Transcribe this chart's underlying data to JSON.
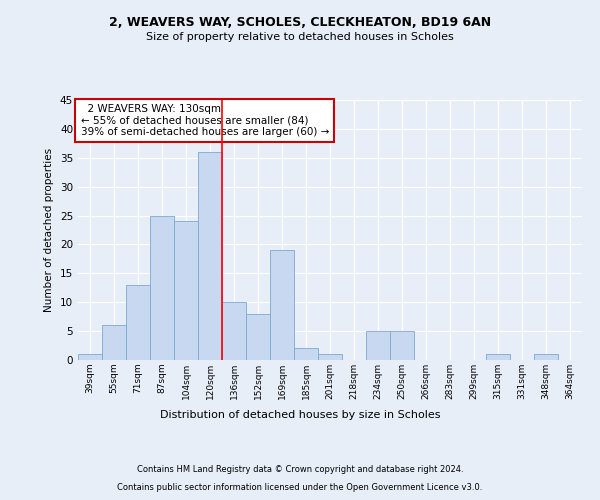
{
  "title1": "2, WEAVERS WAY, SCHOLES, CLECKHEATON, BD19 6AN",
  "title2": "Size of property relative to detached houses in Scholes",
  "xlabel": "Distribution of detached houses by size in Scholes",
  "ylabel": "Number of detached properties",
  "footer1": "Contains HM Land Registry data © Crown copyright and database right 2024.",
  "footer2": "Contains public sector information licensed under the Open Government Licence v3.0.",
  "annotation_line1": "  2 WEAVERS WAY: 130sqm",
  "annotation_line2": "← 55% of detached houses are smaller (84)",
  "annotation_line3": "39% of semi-detached houses are larger (60) →",
  "bins": [
    "39sqm",
    "55sqm",
    "71sqm",
    "87sqm",
    "104sqm",
    "120sqm",
    "136sqm",
    "152sqm",
    "169sqm",
    "185sqm",
    "201sqm",
    "218sqm",
    "234sqm",
    "250sqm",
    "266sqm",
    "283sqm",
    "299sqm",
    "315sqm",
    "331sqm",
    "348sqm",
    "364sqm"
  ],
  "values": [
    1,
    6,
    13,
    25,
    24,
    36,
    10,
    8,
    19,
    2,
    1,
    0,
    5,
    5,
    0,
    0,
    0,
    1,
    0,
    1,
    0
  ],
  "bar_color": "#c8d8f0",
  "bar_edge_color": "#7aaad0",
  "redline_x": 5.5,
  "ylim": [
    0,
    45
  ],
  "yticks": [
    0,
    5,
    10,
    15,
    20,
    25,
    30,
    35,
    40,
    45
  ],
  "bg_color": "#e8eef8",
  "plot_bg_color": "#e8eef8",
  "grid_color": "#ffffff",
  "annotation_box_color": "#ffffff",
  "annotation_border_color": "#cc0000"
}
